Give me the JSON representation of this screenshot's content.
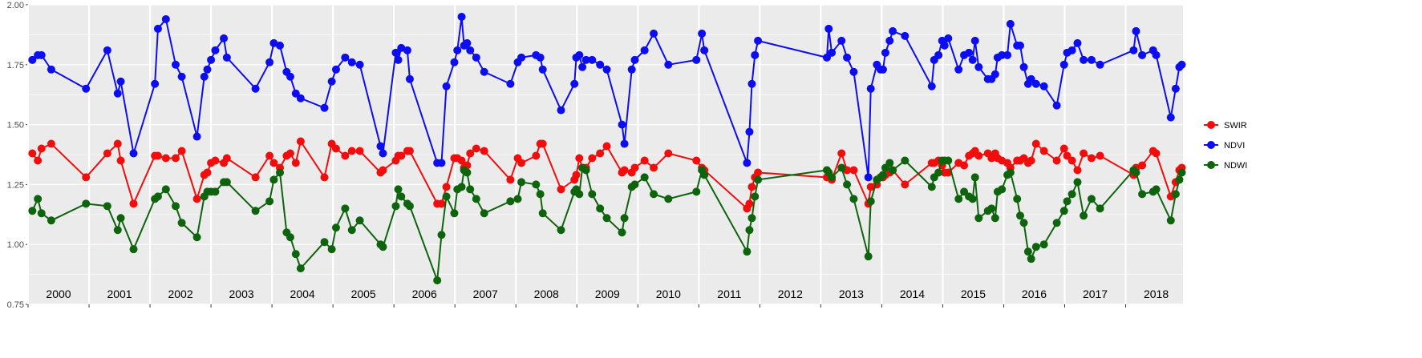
{
  "chart_data": {
    "type": "line",
    "x": [
      2000.07,
      2000.16,
      2000.22,
      2000.38,
      2000.95,
      2001.3,
      2001.47,
      2001.52,
      2001.73,
      2002.08,
      2002.13,
      2002.26,
      2002.42,
      2002.52,
      2002.77,
      2002.89,
      2002.94,
      2003.0,
      2003.07,
      2003.21,
      2003.26,
      2003.73,
      2003.96,
      2004.03,
      2004.13,
      2004.24,
      2004.3,
      2004.39,
      2004.47,
      2004.86,
      2004.98,
      2005.05,
      2005.2,
      2005.31,
      2005.44,
      2005.78,
      2005.82,
      2006.03,
      2006.07,
      2006.12,
      2006.22,
      2006.26,
      2006.71,
      2006.78,
      2006.86,
      2006.99,
      2007.04,
      2007.11,
      2007.15,
      2007.2,
      2007.25,
      2007.35,
      2007.48,
      2007.91,
      2008.03,
      2008.09,
      2008.33,
      2008.4,
      2008.44,
      2008.74,
      2008.96,
      2008.99,
      2009.04,
      2009.09,
      2009.15,
      2009.25,
      2009.38,
      2009.49,
      2009.74,
      2009.78,
      2009.9,
      2009.95,
      2010.11,
      2010.26,
      2010.5,
      2010.96,
      2011.05,
      2011.09,
      2011.79,
      2011.83,
      2011.87,
      2011.92,
      2011.97,
      2013.1,
      2013.13,
      2013.18,
      2013.34,
      2013.43,
      2013.54,
      2013.78,
      2013.82,
      2013.92,
      2013.98,
      2014.02,
      2014.06,
      2014.13,
      2014.18,
      2014.38,
      2014.82,
      2014.86,
      2014.93,
      2014.99,
      2015.03,
      2015.09,
      2015.26,
      2015.35,
      2015.43,
      2015.49,
      2015.53,
      2015.59,
      2015.74,
      2015.8,
      2015.86,
      2015.9,
      2015.97,
      2016.06,
      2016.11,
      2016.22,
      2016.27,
      2016.33,
      2016.4,
      2016.45,
      2016.53,
      2016.66,
      2016.87,
      2016.99,
      2017.04,
      2017.12,
      2017.21,
      2017.31,
      2017.44,
      2017.58,
      2018.13,
      2018.17,
      2018.27,
      2018.45,
      2018.5,
      2018.74,
      2018.82,
      2018.88,
      2018.92
    ],
    "series": [
      {
        "name": "SWIR",
        "color": "#f20d0d",
        "values": [
          1.38,
          1.35,
          1.4,
          1.42,
          1.28,
          1.38,
          1.42,
          1.35,
          1.17,
          1.37,
          1.37,
          1.36,
          1.36,
          1.39,
          1.19,
          1.29,
          1.3,
          1.34,
          1.35,
          1.34,
          1.36,
          1.28,
          1.37,
          1.34,
          1.32,
          1.37,
          1.38,
          1.34,
          1.43,
          1.28,
          1.42,
          1.4,
          1.37,
          1.39,
          1.39,
          1.3,
          1.31,
          1.35,
          1.37,
          1.37,
          1.39,
          1.39,
          1.17,
          1.17,
          1.24,
          1.36,
          1.36,
          1.35,
          1.32,
          1.33,
          1.38,
          1.4,
          1.39,
          1.27,
          1.36,
          1.34,
          1.37,
          1.42,
          1.42,
          1.23,
          1.27,
          1.29,
          1.36,
          1.32,
          1.32,
          1.36,
          1.38,
          1.41,
          1.3,
          1.31,
          1.3,
          1.32,
          1.35,
          1.32,
          1.38,
          1.35,
          1.32,
          1.31,
          1.15,
          1.17,
          1.24,
          1.28,
          1.3,
          1.28,
          1.29,
          1.27,
          1.38,
          1.31,
          1.31,
          1.17,
          1.24,
          1.25,
          1.28,
          1.28,
          1.29,
          1.3,
          1.31,
          1.25,
          1.34,
          1.34,
          1.35,
          1.33,
          1.3,
          1.3,
          1.34,
          1.33,
          1.37,
          1.38,
          1.39,
          1.37,
          1.38,
          1.36,
          1.38,
          1.36,
          1.35,
          1.34,
          1.32,
          1.35,
          1.35,
          1.36,
          1.34,
          1.35,
          1.42,
          1.39,
          1.35,
          1.4,
          1.37,
          1.35,
          1.31,
          1.38,
          1.36,
          1.37,
          1.29,
          1.32,
          1.33,
          1.39,
          1.38,
          1.2,
          1.26,
          1.31,
          1.32
        ]
      },
      {
        "name": "NDVI",
        "color": "#0d0df2",
        "values": [
          1.77,
          1.79,
          1.79,
          1.73,
          1.65,
          1.81,
          1.63,
          1.68,
          1.38,
          1.67,
          1.9,
          1.94,
          1.75,
          1.7,
          1.45,
          1.7,
          1.73,
          1.77,
          1.81,
          1.86,
          1.78,
          1.65,
          1.76,
          1.84,
          1.83,
          1.72,
          1.7,
          1.63,
          1.61,
          1.57,
          1.68,
          1.73,
          1.78,
          1.76,
          1.75,
          1.41,
          1.38,
          1.8,
          1.77,
          1.82,
          1.81,
          1.69,
          1.34,
          1.34,
          1.66,
          1.76,
          1.81,
          1.95,
          1.83,
          1.84,
          1.81,
          1.78,
          1.72,
          1.67,
          1.76,
          1.78,
          1.79,
          1.78,
          1.73,
          1.56,
          1.67,
          1.78,
          1.79,
          1.74,
          1.77,
          1.77,
          1.75,
          1.73,
          1.5,
          1.42,
          1.73,
          1.77,
          1.81,
          1.88,
          1.75,
          1.77,
          1.88,
          1.81,
          1.34,
          1.47,
          1.67,
          1.79,
          1.85,
          1.78,
          1.9,
          1.8,
          1.85,
          1.78,
          1.72,
          1.28,
          1.65,
          1.75,
          1.73,
          1.73,
          1.8,
          1.85,
          1.89,
          1.87,
          1.66,
          1.77,
          1.79,
          1.85,
          1.83,
          1.86,
          1.73,
          1.79,
          1.8,
          1.77,
          1.85,
          1.74,
          1.69,
          1.69,
          1.71,
          1.78,
          1.79,
          1.79,
          1.92,
          1.83,
          1.83,
          1.74,
          1.67,
          1.69,
          1.67,
          1.66,
          1.58,
          1.75,
          1.8,
          1.81,
          1.84,
          1.77,
          1.77,
          1.75,
          1.81,
          1.89,
          1.79,
          1.81,
          1.79,
          1.53,
          1.65,
          1.74,
          1.75
        ]
      },
      {
        "name": "NDWI",
        "color": "#0d640d",
        "values": [
          1.14,
          1.19,
          1.13,
          1.1,
          1.17,
          1.16,
          1.06,
          1.11,
          0.98,
          1.19,
          1.2,
          1.23,
          1.16,
          1.09,
          1.03,
          1.2,
          1.22,
          1.22,
          1.22,
          1.26,
          1.26,
          1.14,
          1.18,
          1.27,
          1.3,
          1.05,
          1.03,
          0.96,
          0.9,
          1.01,
          0.98,
          1.07,
          1.15,
          1.06,
          1.1,
          1.0,
          0.99,
          1.16,
          1.23,
          1.2,
          1.17,
          1.16,
          0.85,
          1.04,
          1.2,
          1.13,
          1.23,
          1.24,
          1.31,
          1.3,
          1.23,
          1.19,
          1.13,
          1.18,
          1.19,
          1.26,
          1.25,
          1.21,
          1.13,
          1.06,
          1.22,
          1.23,
          1.21,
          1.32,
          1.31,
          1.21,
          1.15,
          1.11,
          1.05,
          1.11,
          1.24,
          1.25,
          1.28,
          1.21,
          1.19,
          1.22,
          1.31,
          1.29,
          0.97,
          1.06,
          1.11,
          1.2,
          1.27,
          1.31,
          1.3,
          1.28,
          1.32,
          1.25,
          1.19,
          0.95,
          1.18,
          1.27,
          1.28,
          1.29,
          1.32,
          1.34,
          1.31,
          1.35,
          1.24,
          1.28,
          1.3,
          1.35,
          1.35,
          1.35,
          1.19,
          1.22,
          1.2,
          1.19,
          1.28,
          1.11,
          1.14,
          1.15,
          1.11,
          1.22,
          1.23,
          1.29,
          1.3,
          1.19,
          1.12,
          1.09,
          0.97,
          0.94,
          0.99,
          1.0,
          1.09,
          1.14,
          1.18,
          1.21,
          1.26,
          1.12,
          1.19,
          1.15,
          1.31,
          1.3,
          1.21,
          1.22,
          1.23,
          1.1,
          1.21,
          1.27,
          1.3
        ]
      }
    ],
    "xlim": [
      2000,
      2018.94
    ],
    "xticks": [
      {
        "value": 2000,
        "label": "2000"
      },
      {
        "value": 2001,
        "label": "2001"
      },
      {
        "value": 2002,
        "label": "2002"
      },
      {
        "value": 2003,
        "label": "2003"
      },
      {
        "value": 2004,
        "label": "2004"
      },
      {
        "value": 2005,
        "label": "2005"
      },
      {
        "value": 2006,
        "label": "2006"
      },
      {
        "value": 2007,
        "label": "2007"
      },
      {
        "value": 2008,
        "label": "2008"
      },
      {
        "value": 2009,
        "label": "2009"
      },
      {
        "value": 2010,
        "label": "2010"
      },
      {
        "value": 2011,
        "label": "2011"
      },
      {
        "value": 2012,
        "label": "2012"
      },
      {
        "value": 2013,
        "label": "2013"
      },
      {
        "value": 2014,
        "label": "2014"
      },
      {
        "value": 2015,
        "label": "2015"
      },
      {
        "value": 2016,
        "label": "2016"
      },
      {
        "value": 2017,
        "label": "2017"
      },
      {
        "value": 2018,
        "label": "2018"
      }
    ],
    "ylim": [
      0.75,
      2.0
    ],
    "yticks": [
      {
        "value": 0.75,
        "label": "0.75"
      },
      {
        "value": 1.0,
        "label": "1.00"
      },
      {
        "value": 1.25,
        "label": "1.25"
      },
      {
        "value": 1.5,
        "label": "1.50"
      },
      {
        "value": 1.75,
        "label": "1.75"
      },
      {
        "value": 2.0,
        "label": "2.00"
      }
    ],
    "grid": true,
    "legend": "right"
  }
}
